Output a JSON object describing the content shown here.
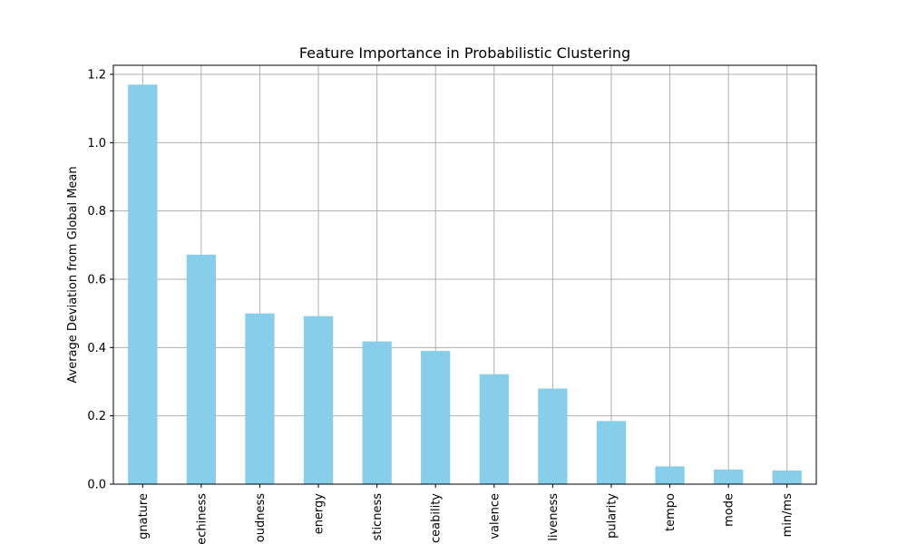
{
  "chart_data": {
    "type": "bar",
    "title": "Feature Importance in Probabilistic Clustering",
    "xlabel": "",
    "ylabel": "Average Deviation from Global Mean",
    "categories": [
      "gnature",
      "echiness",
      "oudness",
      "energy",
      "sticness",
      "ceability",
      "valence",
      "liveness",
      "pularity",
      "tempo",
      "mode",
      "min/ms"
    ],
    "values": [
      1.17,
      0.672,
      0.5,
      0.492,
      0.418,
      0.39,
      0.322,
      0.28,
      0.185,
      0.052,
      0.043,
      0.04
    ],
    "ylim": [
      0,
      1.2266
    ],
    "yticks": [
      "0.0",
      "0.2",
      "0.4",
      "0.6",
      "0.8",
      "1.0",
      "1.2"
    ],
    "grid": true,
    "bar_color": "#87ceeb",
    "legend": "none"
  }
}
